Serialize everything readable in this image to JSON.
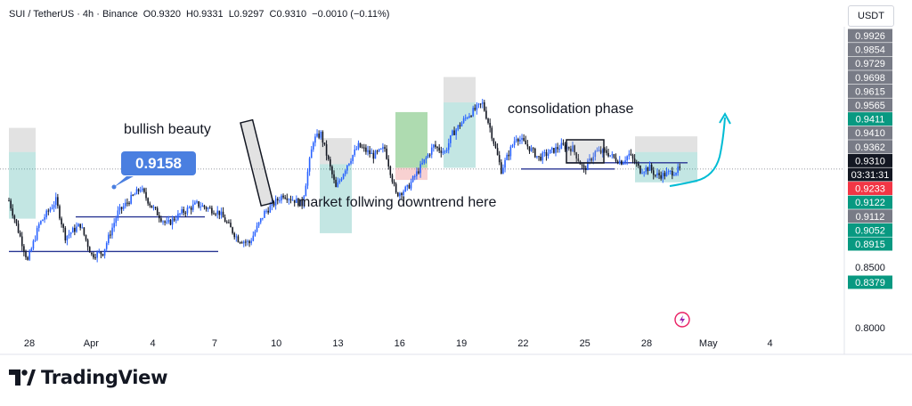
{
  "header": {
    "symbol": "SUI / TetherUS · 4h · Binance",
    "open": "O0.9320",
    "high": "H0.9331",
    "low": "L0.9297",
    "close": "C0.9310",
    "change": "−0.0010 (−0.11%)",
    "currency": "USDT"
  },
  "price_axis": {
    "ticks": [
      {
        "label": "0.9926",
        "value": 0.9926,
        "style": "gray"
      },
      {
        "label": "0.9854",
        "value": 0.9854,
        "style": "gray"
      },
      {
        "label": "0.9729",
        "value": 0.9729,
        "style": "gray"
      },
      {
        "label": "0.9698",
        "value": 0.9698,
        "style": "gray"
      },
      {
        "label": "0.9615",
        "value": 0.9615,
        "style": "gray"
      },
      {
        "label": "0.9565",
        "value": 0.9565,
        "style": "gray"
      },
      {
        "label": "0.9411",
        "value": 0.9411,
        "style": "green"
      },
      {
        "label": "0.9410",
        "value": 0.941,
        "style": "gray"
      },
      {
        "label": "0.9362",
        "value": 0.9362,
        "style": "gray"
      },
      {
        "label": "0.9310",
        "value": 0.931,
        "style": "current"
      },
      {
        "label": "03:31:31",
        "value": 0.9295,
        "style": "countdown"
      },
      {
        "label": "0.9233",
        "value": 0.9233,
        "style": "red"
      },
      {
        "label": "0.9122",
        "value": 0.9122,
        "style": "green"
      },
      {
        "label": "0.9112",
        "value": 0.9112,
        "style": "gray"
      },
      {
        "label": "0.9052",
        "value": 0.9052,
        "style": "green"
      },
      {
        "label": "0.8915",
        "value": 0.8915,
        "style": "green"
      },
      {
        "label": "0.8500",
        "value": 0.85,
        "style": "plain"
      },
      {
        "label": "0.8379",
        "value": 0.8379,
        "style": "green"
      },
      {
        "label": "0.8000",
        "value": 0.8,
        "style": "plain"
      }
    ]
  },
  "time_axis": {
    "labels": [
      "28",
      "Apr",
      "4",
      "7",
      "10",
      "13",
      "16",
      "19",
      "22",
      "25",
      "28",
      "May",
      "4"
    ]
  },
  "annotations": {
    "bullish_beauty": "bullish beauty",
    "price_label": "0.9158",
    "downtrend_note": "market follwing downtrend here",
    "consolidation": "consolidation phase"
  },
  "colors": {
    "up": "#2962ff",
    "down": "#131722",
    "profit_zone": "#26a69a",
    "stop_zone": "#9e9e9e",
    "accent_arrow": "#00bcd4"
  },
  "brand": "TradingView",
  "chart_data": {
    "type": "candlestick",
    "title": "SUI / TetherUS · 4h · Binance",
    "xlabel": "",
    "ylabel": "",
    "x_ticks": [
      "28",
      "Apr",
      "4",
      "7",
      "10",
      "13",
      "16",
      "19",
      "22",
      "25",
      "28",
      "May",
      "4"
    ],
    "ylim": [
      0.8,
      1.0
    ],
    "last_price": 0.931,
    "ohlc_last": {
      "open": 0.932,
      "high": 0.9331,
      "low": 0.9297,
      "close": 0.931
    },
    "path": [
      [
        0,
        0.905
      ],
      [
        10,
        0.855
      ],
      [
        16,
        0.885
      ],
      [
        25,
        0.905
      ],
      [
        30,
        0.875
      ],
      [
        38,
        0.885
      ],
      [
        44,
        0.86
      ],
      [
        50,
        0.862
      ],
      [
        58,
        0.895
      ],
      [
        64,
        0.905
      ],
      [
        70,
        0.915
      ],
      [
        76,
        0.9
      ],
      [
        84,
        0.885
      ],
      [
        92,
        0.895
      ],
      [
        100,
        0.902
      ],
      [
        112,
        0.895
      ],
      [
        122,
        0.873
      ],
      [
        128,
        0.87
      ],
      [
        136,
        0.895
      ],
      [
        146,
        0.91
      ],
      [
        156,
        0.902
      ],
      [
        162,
        0.955
      ],
      [
        166,
        0.96
      ],
      [
        174,
        0.915
      ],
      [
        180,
        0.935
      ],
      [
        186,
        0.95
      ],
      [
        194,
        0.942
      ],
      [
        200,
        0.948
      ],
      [
        206,
        0.91
      ],
      [
        212,
        0.915
      ],
      [
        218,
        0.93
      ],
      [
        226,
        0.95
      ],
      [
        232,
        0.945
      ],
      [
        236,
        0.96
      ],
      [
        244,
        0.975
      ],
      [
        252,
        0.985
      ],
      [
        256,
        0.965
      ],
      [
        262,
        0.93
      ],
      [
        270,
        0.958
      ],
      [
        276,
        0.95
      ],
      [
        282,
        0.94
      ],
      [
        288,
        0.945
      ],
      [
        294,
        0.95
      ],
      [
        300,
        0.948
      ],
      [
        306,
        0.93
      ],
      [
        312,
        0.945
      ],
      [
        318,
        0.945
      ],
      [
        322,
        0.94
      ],
      [
        326,
        0.937
      ],
      [
        330,
        0.943
      ],
      [
        336,
        0.93
      ],
      [
        341,
        0.932
      ],
      [
        344,
        0.926
      ],
      [
        348,
        0.926
      ],
      [
        354,
        0.929
      ],
      [
        358,
        0.931
      ]
    ],
    "levels": [
      {
        "value": 0.8629,
        "label": ""
      },
      {
        "value": 0.8915,
        "label": ""
      },
      {
        "value": 0.9362,
        "label": ""
      },
      {
        "value": 0.931,
        "label": ""
      }
    ]
  }
}
